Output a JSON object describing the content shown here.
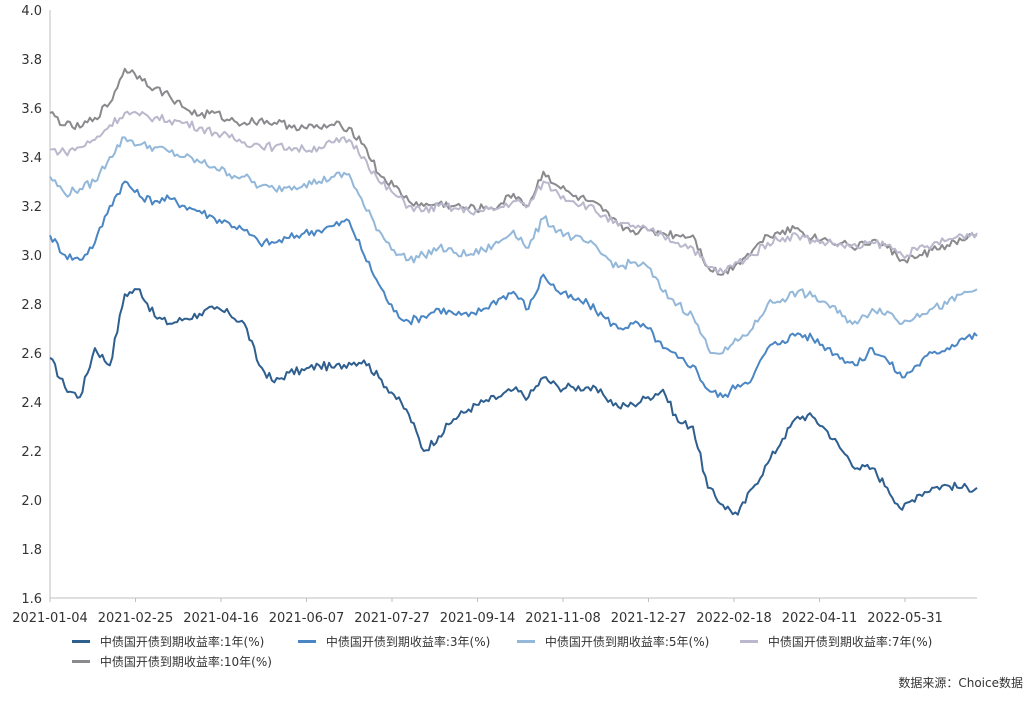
{
  "chart_data": {
    "type": "line",
    "ylim": [
      1.6,
      4.0
    ],
    "y_ticks": [
      "4.0",
      "3.8",
      "3.6",
      "3.4",
      "3.2",
      "3.0",
      "2.8",
      "2.6",
      "2.4",
      "2.2",
      "2.0",
      "1.8",
      "1.6"
    ],
    "x_ticks": [
      "2021-01-04",
      "2021-02-25",
      "2021-04-16",
      "2021-06-07",
      "2021-07-27",
      "2021-09-14",
      "2021-11-08",
      "2021-12-27",
      "2022-02-18",
      "2022-04-11",
      "2022-05-31"
    ],
    "grid": false,
    "legend_position": "bottom",
    "series": [
      {
        "name": "中债国开债到期收益率:1年(%)",
        "color": "#2e5f8f",
        "values": [
          2.58,
          2.46,
          2.42,
          2.62,
          2.55,
          2.84,
          2.86,
          2.75,
          2.72,
          2.74,
          2.76,
          2.78,
          2.76,
          2.72,
          2.55,
          2.48,
          2.52,
          2.53,
          2.55,
          2.54,
          2.56,
          2.57,
          2.5,
          2.43,
          2.35,
          2.2,
          2.26,
          2.33,
          2.37,
          2.4,
          2.42,
          2.45,
          2.42,
          2.5,
          2.46,
          2.46,
          2.46,
          2.43,
          2.38,
          2.39,
          2.42,
          2.45,
          2.32,
          2.3,
          2.05,
          1.98,
          1.94,
          2.05,
          2.15,
          2.25,
          2.34,
          2.34,
          2.28,
          2.2,
          2.13,
          2.13,
          2.05,
          1.96,
          2.02,
          2.05,
          2.06,
          2.05,
          2.05
        ]
      },
      {
        "name": "中债国开债到期收益率:3年(%)",
        "color": "#4a86c4",
        "values": [
          3.08,
          3.0,
          2.98,
          3.05,
          3.2,
          3.3,
          3.24,
          3.22,
          3.23,
          3.2,
          3.18,
          3.15,
          3.13,
          3.1,
          3.05,
          3.05,
          3.07,
          3.09,
          3.1,
          3.12,
          3.14,
          3.0,
          2.88,
          2.77,
          2.73,
          2.75,
          2.78,
          2.76,
          2.75,
          2.78,
          2.82,
          2.85,
          2.78,
          2.92,
          2.85,
          2.82,
          2.8,
          2.75,
          2.7,
          2.72,
          2.7,
          2.62,
          2.58,
          2.55,
          2.45,
          2.42,
          2.47,
          2.5,
          2.62,
          2.65,
          2.68,
          2.66,
          2.62,
          2.58,
          2.55,
          2.62,
          2.57,
          2.5,
          2.55,
          2.6,
          2.62,
          2.66,
          2.67
        ]
      },
      {
        "name": "中债国开债到期收益率:5年(%)",
        "color": "#93b8da",
        "values": [
          3.32,
          3.25,
          3.27,
          3.3,
          3.4,
          3.48,
          3.45,
          3.44,
          3.42,
          3.4,
          3.38,
          3.36,
          3.33,
          3.32,
          3.28,
          3.27,
          3.28,
          3.29,
          3.3,
          3.32,
          3.33,
          3.2,
          3.1,
          3.02,
          2.98,
          3.0,
          3.03,
          3.01,
          3.0,
          3.02,
          3.05,
          3.1,
          3.03,
          3.15,
          3.1,
          3.07,
          3.05,
          3.0,
          2.95,
          2.97,
          2.95,
          2.85,
          2.8,
          2.75,
          2.62,
          2.6,
          2.65,
          2.7,
          2.8,
          2.82,
          2.85,
          2.83,
          2.8,
          2.75,
          2.72,
          2.78,
          2.77,
          2.72,
          2.76,
          2.78,
          2.8,
          2.84,
          2.86
        ]
      },
      {
        "name": "中债国开债到期收益率:7年(%)",
        "color": "#b9b8cc",
        "values": [
          3.43,
          3.42,
          3.44,
          3.47,
          3.53,
          3.58,
          3.57,
          3.56,
          3.55,
          3.54,
          3.52,
          3.5,
          3.48,
          3.46,
          3.45,
          3.44,
          3.44,
          3.43,
          3.44,
          3.46,
          3.47,
          3.4,
          3.3,
          3.25,
          3.2,
          3.18,
          3.2,
          3.19,
          3.18,
          3.18,
          3.19,
          3.22,
          3.2,
          3.3,
          3.25,
          3.22,
          3.2,
          3.16,
          3.12,
          3.12,
          3.1,
          3.08,
          3.05,
          3.03,
          2.95,
          2.93,
          2.97,
          3.0,
          3.05,
          3.07,
          3.08,
          3.06,
          3.05,
          3.04,
          3.03,
          3.05,
          3.04,
          3.0,
          3.02,
          3.04,
          3.06,
          3.08,
          3.09
        ]
      },
      {
        "name": "中债国开债到期收益率:10年(%)",
        "color": "#8a8a8e",
        "values": [
          3.58,
          3.53,
          3.52,
          3.56,
          3.62,
          3.76,
          3.73,
          3.68,
          3.65,
          3.6,
          3.57,
          3.58,
          3.55,
          3.54,
          3.55,
          3.54,
          3.53,
          3.52,
          3.52,
          3.53,
          3.52,
          3.45,
          3.33,
          3.28,
          3.22,
          3.2,
          3.21,
          3.2,
          3.19,
          3.19,
          3.2,
          3.25,
          3.2,
          3.34,
          3.28,
          3.24,
          3.22,
          3.18,
          3.12,
          3.1,
          3.1,
          3.09,
          3.08,
          3.08,
          2.95,
          2.92,
          2.97,
          3.02,
          3.08,
          3.1,
          3.11,
          3.07,
          3.06,
          3.05,
          3.03,
          3.06,
          3.03,
          2.98,
          2.99,
          3.02,
          3.04,
          3.06,
          3.08
        ]
      }
    ]
  },
  "source_note": "数据来源：Choice数据"
}
